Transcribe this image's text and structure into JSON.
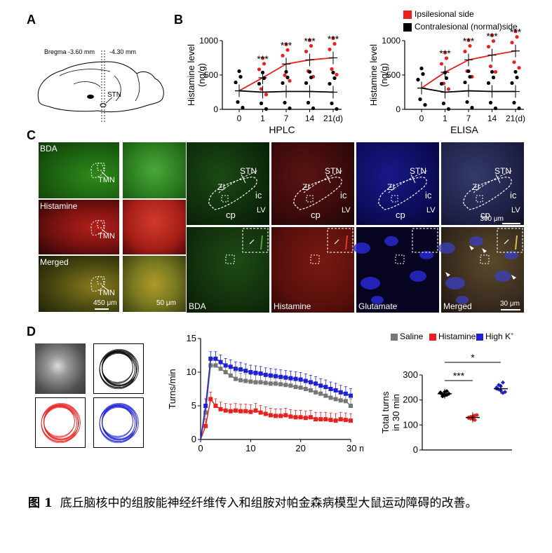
{
  "panels": {
    "A": "A",
    "B": "B",
    "C": "C",
    "D": "D"
  },
  "panelA": {
    "bregma1": "Bregma -3.60 mm",
    "bregma2": "-4.30 mm",
    "stn": "STN"
  },
  "legendB": {
    "ipsi": "Ipsilesional side",
    "contra": "Contralesional (normal)side",
    "ipsi_color": "#e8201e",
    "contra_color": "#000000"
  },
  "panelC": {
    "left_labels": [
      "BDA",
      "Histamine",
      "Merged"
    ],
    "tmn": "TMN",
    "scale_left": "450 μm",
    "scale_left2": "50 μm",
    "region": {
      "stn": "STN",
      "zi": "ZI",
      "ic": "ic",
      "cp": "cp",
      "lv": "LV"
    },
    "scale_right": "300 μm",
    "bottom_labels": [
      "BDA",
      "Histamine",
      "Glutamate",
      "Merged"
    ],
    "scale_bottom": "30 μm"
  },
  "panelD": {
    "legend": [
      "Saline",
      "Histamine",
      "High  K"
    ],
    "legend_sup": "+",
    "colors": {
      "saline": "#777777",
      "histamine": "#e8201e",
      "highk": "#1f22d4"
    }
  },
  "chart_data": [
    {
      "type": "line",
      "title": "",
      "xlabel": "HPLC",
      "ylabel": "Histamine level (ng/g)",
      "categories": [
        "0",
        "1",
        "7",
        "14",
        "21(d)"
      ],
      "ylim": [
        0,
        1000
      ],
      "yticks": [
        "0",
        "500",
        "1000"
      ],
      "series": [
        {
          "name": "Ipsilesional side",
          "values": [
            270,
            460,
            660,
            720,
            750
          ]
        },
        {
          "name": "Contralesional (normal)side",
          "values": [
            270,
            250,
            260,
            260,
            250
          ]
        }
      ],
      "annotations": [
        "***",
        "***",
        "***",
        "***"
      ]
    },
    {
      "type": "line",
      "title": "",
      "xlabel": "ELISA",
      "ylabel": "Histamine level (ng/g)",
      "categories": [
        "0",
        "1",
        "7",
        "14",
        "21(d)"
      ],
      "ylim": [
        0,
        1000
      ],
      "yticks": [
        "0",
        "500",
        "1000"
      ],
      "series": [
        {
          "name": "Ipsilesional side",
          "values": [
            310,
            540,
            720,
            790,
            850
          ]
        },
        {
          "name": "Contralesional (normal)side",
          "values": [
            310,
            250,
            270,
            260,
            260
          ]
        }
      ],
      "annotations": [
        "***",
        "***",
        "***",
        "***"
      ]
    },
    {
      "type": "line",
      "title": "",
      "xlabel": "min",
      "ylabel": "Turns/min",
      "ylim": [
        0,
        15
      ],
      "xlim": [
        0,
        30
      ],
      "xticks": [
        "0",
        "10",
        "20",
        "30 min"
      ],
      "yticks": [
        "0",
        "5",
        "10",
        "15"
      ],
      "x": [
        1,
        2,
        3,
        4,
        5,
        6,
        7,
        8,
        9,
        10,
        11,
        12,
        13,
        14,
        15,
        16,
        17,
        18,
        19,
        20,
        21,
        22,
        23,
        24,
        25,
        26,
        27,
        28,
        29,
        30
      ],
      "series": [
        {
          "name": "Saline",
          "values": [
            4.0,
            11.0,
            11.0,
            10.5,
            10.0,
            9.5,
            9.0,
            8.8,
            8.7,
            8.6,
            8.5,
            8.5,
            8.4,
            8.3,
            8.3,
            8.2,
            8.1,
            8.0,
            7.8,
            7.7,
            7.5,
            7.3,
            7.0,
            6.8,
            6.5,
            6.2,
            6.0,
            5.8,
            5.7,
            5.0
          ]
        },
        {
          "name": "Histamine",
          "values": [
            2.0,
            6.0,
            5.0,
            4.5,
            4.3,
            4.2,
            4.3,
            4.2,
            4.2,
            4.1,
            4.3,
            4.0,
            3.8,
            3.6,
            3.5,
            3.5,
            3.6,
            3.4,
            3.3,
            3.3,
            3.2,
            3.3,
            3.0,
            3.0,
            3.0,
            2.9,
            2.8,
            3.0,
            2.9,
            2.8
          ]
        },
        {
          "name": "High  K+",
          "values": [
            5.0,
            12.0,
            12.0,
            11.5,
            11.0,
            10.8,
            10.5,
            10.4,
            10.2,
            10.0,
            9.9,
            9.8,
            9.6,
            9.5,
            9.4,
            9.3,
            9.2,
            9.1,
            9.0,
            8.9,
            8.7,
            8.5,
            8.3,
            8.0,
            7.8,
            7.5,
            7.3,
            7.0,
            6.8,
            6.5
          ]
        }
      ]
    },
    {
      "type": "scatter",
      "title": "",
      "ylabel": "Total turns in 30 min",
      "ylim": [
        0,
        300
      ],
      "yticks": [
        "0",
        "100",
        "200",
        "300"
      ],
      "categories": [
        "Saline",
        "Histamine",
        "High  K+"
      ],
      "series": [
        {
          "name": "Saline",
          "values": [
            228,
            222,
            218,
            235,
            225,
            230,
            215,
            232,
            220
          ]
        },
        {
          "name": "Histamine",
          "values": [
            130,
            125,
            135,
            120,
            140,
            128,
            133,
            124,
            138
          ]
        },
        {
          "name": "High  K+",
          "values": [
            245,
            260,
            238,
            270,
            232,
            250,
            242,
            255,
            228
          ]
        }
      ],
      "means": [
        225,
        130,
        245
      ],
      "annotations": [
        "***",
        "*"
      ]
    }
  ],
  "caption": {
    "fig": "图 1",
    "text": "底丘脑核中的组胺能神经纤维传入和组胺对帕金森病模型大鼠运动障碍的改善。"
  }
}
